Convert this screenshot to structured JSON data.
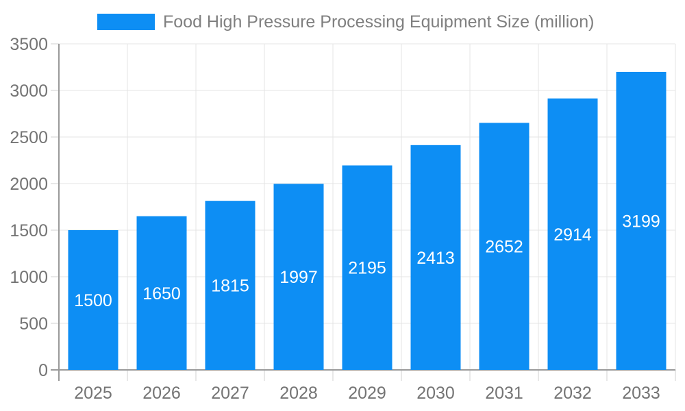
{
  "chart_data": {
    "type": "bar",
    "title": "Food High Pressure Processing Equipment Size (million)",
    "legend": {
      "label": "Food High Pressure Processing Equipment Size (million)",
      "position": "top"
    },
    "categories": [
      "2025",
      "2026",
      "2027",
      "2028",
      "2029",
      "2030",
      "2031",
      "2032",
      "2033"
    ],
    "series": [
      {
        "name": "Food High Pressure Processing Equipment Size (million)",
        "values": [
          1500,
          1650,
          1815,
          1997,
          2195,
          2413,
          2652,
          2914,
          3199
        ]
      }
    ],
    "values": [
      1500,
      1650,
      1815,
      1997,
      2195,
      2413,
      2652,
      2914,
      3199
    ],
    "value_labels_shown": true,
    "xlabel": "",
    "ylabel": "",
    "ylim": [
      0,
      3500
    ],
    "ytick_step": 500,
    "yticks": [
      0,
      500,
      1000,
      1500,
      2000,
      2500,
      3000,
      3500
    ],
    "grid": true,
    "colors": {
      "bar": "#0d8ef4",
      "grid": "#e4e4e4",
      "axis": "#9a9a9a",
      "tick": "#d2d2d2",
      "axis_text": "#747474",
      "value_label": "#ffffff",
      "legend_text": "#7f7f7f"
    }
  }
}
